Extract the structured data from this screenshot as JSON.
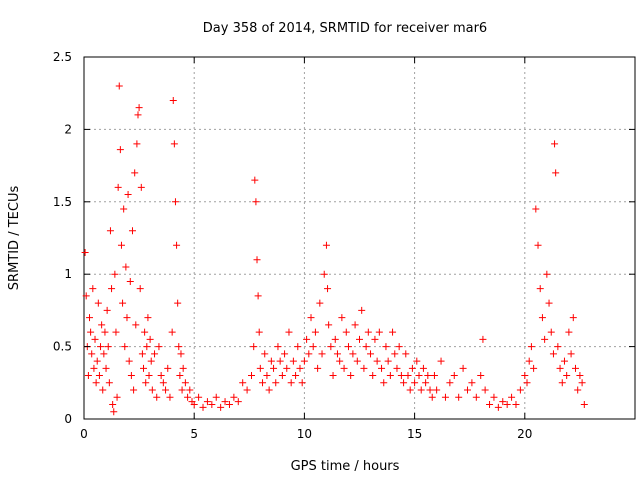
{
  "chart_data": {
    "type": "scatter",
    "title": "Day 358 of 2014, SRMTID for receiver mar6",
    "xlabel": "GPS time / hours",
    "ylabel": "SRMTID / TECUs",
    "xlim": [
      0,
      25
    ],
    "ylim": [
      0,
      2.5
    ],
    "xticks": [
      "0",
      "5",
      "10",
      "15",
      "20"
    ],
    "xtick_values": [
      0,
      5,
      10,
      15,
      20
    ],
    "yticks": [
      "0",
      "0.5",
      "1",
      "1.5",
      "2",
      "2.5"
    ],
    "ytick_values": [
      0,
      0.5,
      1,
      1.5,
      2,
      2.5
    ],
    "grid": true,
    "marker": "+",
    "color": "#ff0000",
    "series": [
      {
        "name": "SRMTID",
        "points": [
          [
            0.05,
            1.15
          ],
          [
            0.1,
            0.85
          ],
          [
            0.15,
            0.5
          ],
          [
            0.2,
            0.3
          ],
          [
            0.25,
            0.7
          ],
          [
            0.3,
            0.6
          ],
          [
            0.35,
            0.45
          ],
          [
            0.4,
            0.9
          ],
          [
            0.45,
            0.35
          ],
          [
            0.5,
            0.55
          ],
          [
            0.55,
            0.25
          ],
          [
            0.6,
            0.4
          ],
          [
            0.65,
            0.8
          ],
          [
            0.7,
            0.3
          ],
          [
            0.75,
            0.5
          ],
          [
            0.8,
            0.65
          ],
          [
            0.85,
            0.2
          ],
          [
            0.9,
            0.45
          ],
          [
            0.95,
            0.6
          ],
          [
            1.0,
            0.35
          ],
          [
            1.05,
            0.75
          ],
          [
            1.1,
            0.5
          ],
          [
            1.15,
            0.25
          ],
          [
            1.2,
            1.3
          ],
          [
            1.25,
            0.9
          ],
          [
            1.3,
            0.1
          ],
          [
            1.35,
            0.05
          ],
          [
            1.4,
            1.0
          ],
          [
            1.45,
            0.6
          ],
          [
            1.5,
            0.15
          ],
          [
            1.55,
            1.6
          ],
          [
            1.6,
            2.3
          ],
          [
            1.65,
            1.86
          ],
          [
            1.7,
            1.2
          ],
          [
            1.75,
            0.8
          ],
          [
            1.8,
            1.45
          ],
          [
            1.85,
            0.5
          ],
          [
            1.9,
            1.05
          ],
          [
            1.95,
            0.7
          ],
          [
            2.0,
            1.55
          ],
          [
            2.05,
            0.4
          ],
          [
            2.1,
            0.95
          ],
          [
            2.15,
            0.3
          ],
          [
            2.2,
            1.3
          ],
          [
            2.25,
            0.2
          ],
          [
            2.3,
            1.7
          ],
          [
            2.35,
            0.65
          ],
          [
            2.4,
            1.9
          ],
          [
            2.45,
            2.1
          ],
          [
            2.5,
            2.15
          ],
          [
            2.55,
            0.9
          ],
          [
            2.6,
            1.6
          ],
          [
            2.65,
            0.45
          ],
          [
            2.7,
            0.35
          ],
          [
            2.75,
            0.6
          ],
          [
            2.8,
            0.25
          ],
          [
            2.85,
            0.5
          ],
          [
            2.9,
            0.7
          ],
          [
            2.95,
            0.3
          ],
          [
            3.0,
            0.55
          ],
          [
            3.05,
            0.4
          ],
          [
            3.1,
            0.2
          ],
          [
            3.2,
            0.45
          ],
          [
            3.3,
            0.15
          ],
          [
            3.4,
            0.5
          ],
          [
            3.5,
            0.3
          ],
          [
            3.6,
            0.25
          ],
          [
            3.7,
            0.2
          ],
          [
            3.8,
            0.35
          ],
          [
            3.9,
            0.15
          ],
          [
            4.0,
            0.6
          ],
          [
            4.05,
            2.2
          ],
          [
            4.1,
            1.9
          ],
          [
            4.15,
            1.5
          ],
          [
            4.2,
            1.2
          ],
          [
            4.25,
            0.8
          ],
          [
            4.3,
            0.5
          ],
          [
            4.35,
            0.3
          ],
          [
            4.4,
            0.45
          ],
          [
            4.45,
            0.2
          ],
          [
            4.5,
            0.35
          ],
          [
            4.6,
            0.25
          ],
          [
            4.7,
            0.15
          ],
          [
            4.8,
            0.2
          ],
          [
            4.9,
            0.12
          ],
          [
            5.0,
            0.1
          ],
          [
            5.2,
            0.15
          ],
          [
            5.4,
            0.08
          ],
          [
            5.6,
            0.12
          ],
          [
            5.8,
            0.1
          ],
          [
            6.0,
            0.15
          ],
          [
            6.2,
            0.08
          ],
          [
            6.4,
            0.12
          ],
          [
            6.6,
            0.1
          ],
          [
            6.8,
            0.15
          ],
          [
            7.0,
            0.12
          ],
          [
            7.2,
            0.25
          ],
          [
            7.4,
            0.2
          ],
          [
            7.6,
            0.3
          ],
          [
            7.7,
            0.5
          ],
          [
            7.75,
            1.65
          ],
          [
            7.8,
            1.5
          ],
          [
            7.85,
            1.1
          ],
          [
            7.9,
            0.85
          ],
          [
            7.95,
            0.6
          ],
          [
            8.0,
            0.35
          ],
          [
            8.1,
            0.25
          ],
          [
            8.2,
            0.45
          ],
          [
            8.3,
            0.3
          ],
          [
            8.4,
            0.2
          ],
          [
            8.5,
            0.4
          ],
          [
            8.6,
            0.35
          ],
          [
            8.7,
            0.25
          ],
          [
            8.8,
            0.5
          ],
          [
            8.9,
            0.4
          ],
          [
            9.0,
            0.3
          ],
          [
            9.1,
            0.45
          ],
          [
            9.2,
            0.35
          ],
          [
            9.3,
            0.6
          ],
          [
            9.4,
            0.25
          ],
          [
            9.5,
            0.4
          ],
          [
            9.6,
            0.3
          ],
          [
            9.7,
            0.5
          ],
          [
            9.8,
            0.35
          ],
          [
            9.9,
            0.25
          ],
          [
            10.0,
            0.4
          ],
          [
            10.1,
            0.55
          ],
          [
            10.2,
            0.45
          ],
          [
            10.3,
            0.7
          ],
          [
            10.4,
            0.5
          ],
          [
            10.5,
            0.6
          ],
          [
            10.6,
            0.35
          ],
          [
            10.7,
            0.8
          ],
          [
            10.8,
            0.45
          ],
          [
            10.9,
            1.0
          ],
          [
            11.0,
            1.2
          ],
          [
            11.05,
            0.9
          ],
          [
            11.1,
            0.65
          ],
          [
            11.2,
            0.5
          ],
          [
            11.3,
            0.3
          ],
          [
            11.4,
            0.55
          ],
          [
            11.5,
            0.45
          ],
          [
            11.6,
            0.4
          ],
          [
            11.7,
            0.7
          ],
          [
            11.8,
            0.35
          ],
          [
            11.9,
            0.6
          ],
          [
            12.0,
            0.5
          ],
          [
            12.1,
            0.3
          ],
          [
            12.2,
            0.45
          ],
          [
            12.3,
            0.65
          ],
          [
            12.4,
            0.4
          ],
          [
            12.5,
            0.55
          ],
          [
            12.6,
            0.75
          ],
          [
            12.7,
            0.35
          ],
          [
            12.8,
            0.5
          ],
          [
            12.9,
            0.6
          ],
          [
            13.0,
            0.45
          ],
          [
            13.1,
            0.3
          ],
          [
            13.2,
            0.55
          ],
          [
            13.3,
            0.4
          ],
          [
            13.4,
            0.6
          ],
          [
            13.5,
            0.35
          ],
          [
            13.6,
            0.25
          ],
          [
            13.7,
            0.5
          ],
          [
            13.8,
            0.4
          ],
          [
            13.9,
            0.3
          ],
          [
            14.0,
            0.6
          ],
          [
            14.1,
            0.45
          ],
          [
            14.2,
            0.35
          ],
          [
            14.3,
            0.5
          ],
          [
            14.4,
            0.3
          ],
          [
            14.5,
            0.25
          ],
          [
            14.6,
            0.45
          ],
          [
            14.7,
            0.3
          ],
          [
            14.8,
            0.2
          ],
          [
            14.9,
            0.35
          ],
          [
            15.0,
            0.25
          ],
          [
            15.1,
            0.4
          ],
          [
            15.2,
            0.3
          ],
          [
            15.3,
            0.2
          ],
          [
            15.4,
            0.35
          ],
          [
            15.5,
            0.25
          ],
          [
            15.6,
            0.3
          ],
          [
            15.7,
            0.2
          ],
          [
            15.8,
            0.15
          ],
          [
            15.9,
            0.3
          ],
          [
            16.0,
            0.2
          ],
          [
            16.2,
            0.4
          ],
          [
            16.4,
            0.15
          ],
          [
            16.6,
            0.25
          ],
          [
            16.8,
            0.3
          ],
          [
            17.0,
            0.15
          ],
          [
            17.2,
            0.35
          ],
          [
            17.4,
            0.2
          ],
          [
            17.6,
            0.25
          ],
          [
            17.8,
            0.15
          ],
          [
            18.0,
            0.3
          ],
          [
            18.1,
            0.55
          ],
          [
            18.2,
            0.2
          ],
          [
            18.4,
            0.1
          ],
          [
            18.6,
            0.15
          ],
          [
            18.8,
            0.08
          ],
          [
            19.0,
            0.12
          ],
          [
            19.2,
            0.1
          ],
          [
            19.4,
            0.15
          ],
          [
            19.6,
            0.1
          ],
          [
            19.8,
            0.2
          ],
          [
            20.0,
            0.3
          ],
          [
            20.1,
            0.25
          ],
          [
            20.2,
            0.4
          ],
          [
            20.3,
            0.5
          ],
          [
            20.4,
            0.35
          ],
          [
            20.5,
            1.45
          ],
          [
            20.6,
            1.2
          ],
          [
            20.7,
            0.9
          ],
          [
            20.8,
            0.7
          ],
          [
            20.9,
            0.55
          ],
          [
            21.0,
            1.0
          ],
          [
            21.1,
            0.8
          ],
          [
            21.2,
            0.6
          ],
          [
            21.3,
            0.45
          ],
          [
            21.35,
            1.9
          ],
          [
            21.4,
            1.7
          ],
          [
            21.5,
            0.5
          ],
          [
            21.6,
            0.35
          ],
          [
            21.7,
            0.25
          ],
          [
            21.8,
            0.4
          ],
          [
            21.9,
            0.3
          ],
          [
            22.0,
            0.6
          ],
          [
            22.1,
            0.45
          ],
          [
            22.2,
            0.7
          ],
          [
            22.3,
            0.35
          ],
          [
            22.4,
            0.2
          ],
          [
            22.5,
            0.3
          ],
          [
            22.6,
            0.25
          ],
          [
            22.7,
            0.1
          ]
        ]
      }
    ]
  }
}
